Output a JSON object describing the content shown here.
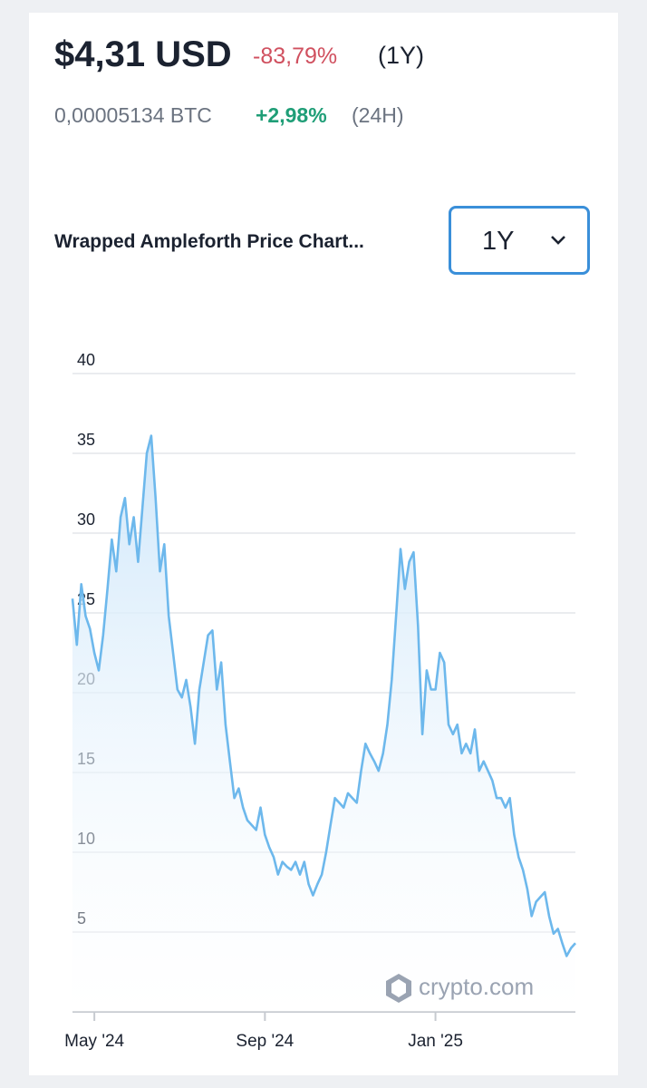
{
  "header": {
    "price": "$4,31 USD",
    "change": "-83,79%",
    "period": "(1Y)",
    "btc_price": "0,00005134 BTC",
    "btc_change": "+2,98%",
    "btc_period": "(24H)"
  },
  "selector": {
    "value": "1Y"
  },
  "chart_data": {
    "type": "line",
    "title": "Wrapped Ampleforth Price Chart...",
    "watermark": "crypto.com",
    "categories": [
      null,
      null,
      null,
      null,
      null,
      "May '24",
      null,
      null,
      null,
      null,
      null,
      null,
      null,
      null,
      null,
      null,
      null,
      null,
      null,
      null,
      null,
      null,
      null,
      null,
      null,
      null,
      null,
      null,
      null,
      null,
      null,
      null,
      null,
      null,
      null,
      null,
      null,
      null,
      null,
      null,
      null,
      null,
      null,
      null,
      "Sep '24",
      null,
      null,
      null,
      null,
      null,
      null,
      null,
      null,
      null,
      null,
      null,
      null,
      null,
      null,
      null,
      null,
      null,
      null,
      null,
      null,
      null,
      null,
      null,
      null,
      null,
      null,
      null,
      null,
      null,
      null,
      null,
      null,
      null,
      null,
      null,
      null,
      null,
      null,
      "Jan '25",
      null,
      null,
      null,
      null,
      null,
      null,
      null,
      null,
      null,
      null,
      null,
      null,
      null,
      null,
      null,
      null,
      null,
      null,
      null,
      null,
      null,
      null,
      null,
      null,
      null,
      null,
      null,
      null,
      null,
      null,
      null,
      null
    ],
    "series": [
      {
        "color": "#6db8ec",
        "values": [
          25.9,
          23,
          26.8,
          24.8,
          24,
          22.5,
          21.4,
          23.6,
          26.5,
          29.6,
          27.6,
          31,
          32.2,
          29.3,
          31,
          28.2,
          31.6,
          35,
          36.1,
          32.2,
          27.6,
          29.3,
          24.8,
          22.5,
          20.2,
          19.7,
          20.8,
          19.1,
          16.8,
          20.2,
          21.9,
          23.6,
          23.9,
          20.2,
          21.9,
          18,
          15.7,
          13.4,
          14,
          12.8,
          12,
          11.7,
          11.4,
          12.8,
          11.1,
          10.3,
          9.7,
          8.6,
          9.4,
          9.1,
          8.9,
          9.4,
          8.6,
          9.4,
          8,
          7.3,
          8,
          8.6,
          10,
          11.7,
          13.4,
          13.1,
          12.8,
          13.7,
          13.4,
          13.1,
          15.1,
          16.8,
          16.2,
          15.7,
          15.1,
          16.2,
          18,
          20.8,
          24.8,
          29,
          26.5,
          28.2,
          28.8,
          24.2,
          17.4,
          21.4,
          20.2,
          20.2,
          22.5,
          21.9,
          18,
          17.4,
          18,
          16.2,
          16.8,
          16.2,
          17.7,
          15.1,
          15.7,
          15.1,
          14.5,
          13.4,
          13.4,
          12.8,
          13.4,
          11.1,
          9.7,
          8.9,
          7.7,
          6,
          6.9,
          7.2,
          7.5,
          6,
          4.9,
          5.2,
          4.3,
          3.5,
          4,
          4.3
        ]
      }
    ],
    "ylim": [
      0,
      40
    ],
    "yticks": [
      5,
      10,
      15,
      20,
      25,
      30,
      35,
      40
    ],
    "grid": true
  }
}
